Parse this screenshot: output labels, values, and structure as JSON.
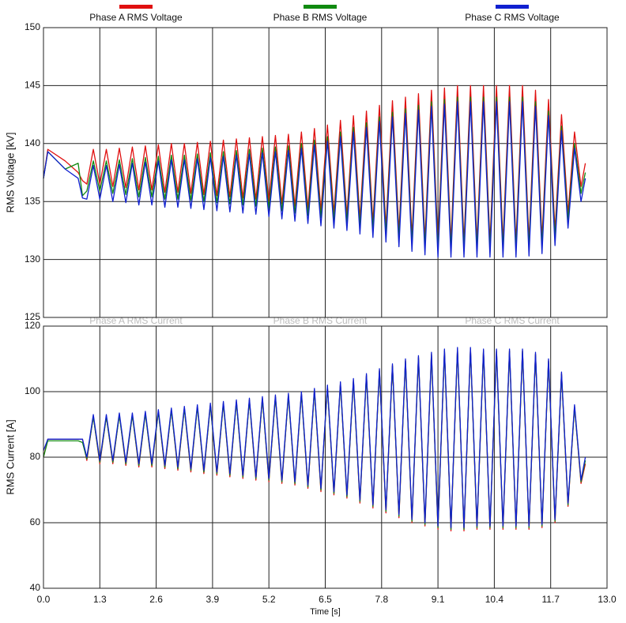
{
  "chart_data": [
    {
      "type": "line",
      "ylabel": "RMS Voltage [kV]",
      "grid": true,
      "legend": "top",
      "xlim": [
        0,
        13
      ],
      "ylim": [
        125,
        150
      ],
      "xticks": [
        0,
        1.3,
        2.6,
        3.9,
        5.2,
        6.5,
        7.8,
        9.1,
        10.4,
        11.7,
        13
      ],
      "yticks": [
        125,
        130,
        135,
        140,
        145,
        150
      ],
      "x": [
        0,
        0.1,
        0.5,
        0.8,
        0.9,
        1,
        1.15,
        1.3,
        1.45,
        1.6,
        1.75,
        1.9,
        2.05,
        2.2,
        2.35,
        2.5,
        2.65,
        2.8,
        2.95,
        3.1,
        3.25,
        3.4,
        3.55,
        3.7,
        3.85,
        4,
        4.15,
        4.3,
        4.45,
        4.6,
        4.75,
        4.9,
        5.05,
        5.2,
        5.35,
        5.5,
        5.65,
        5.8,
        5.95,
        6.1,
        6.25,
        6.4,
        6.55,
        6.7,
        6.85,
        7,
        7.15,
        7.3,
        7.45,
        7.6,
        7.75,
        7.9,
        8.05,
        8.2,
        8.35,
        8.5,
        8.65,
        8.8,
        8.95,
        9.1,
        9.25,
        9.4,
        9.55,
        9.7,
        9.85,
        10,
        10.15,
        10.3,
        10.45,
        10.6,
        10.75,
        10.9,
        11.05,
        11.2,
        11.35,
        11.5,
        11.65,
        11.8,
        11.95,
        12.1,
        12.25,
        12.4,
        12.5
      ],
      "series": [
        {
          "name": "Phase A RMS Voltage",
          "color": "#e01010",
          "values": [
            137,
            139.5,
            138.5,
            137.5,
            136.8,
            136.5,
            139.5,
            136.5,
            139.5,
            136.3,
            139.6,
            136.2,
            139.7,
            136,
            139.8,
            136,
            139.9,
            135.8,
            140,
            135.8,
            140,
            135.7,
            140.1,
            135.6,
            140.2,
            135.5,
            140.3,
            135.4,
            140.4,
            135.3,
            140.5,
            135.2,
            140.6,
            135,
            140.7,
            134.8,
            140.8,
            134.6,
            141,
            134.4,
            141.3,
            134.2,
            141.6,
            134,
            142,
            133.8,
            142.4,
            133.5,
            142.8,
            133.2,
            143.3,
            132.8,
            143.7,
            132.4,
            144,
            132,
            144.3,
            131.7,
            144.6,
            131.5,
            144.8,
            131.5,
            145,
            131.5,
            145,
            131.5,
            145,
            131.5,
            145,
            131.5,
            145,
            131.5,
            145,
            131.6,
            144.6,
            131.8,
            143.8,
            132.5,
            142.5,
            134,
            141,
            136.3,
            138.3
          ]
        },
        {
          "name": "Phase B RMS Voltage",
          "color": "#108a10",
          "values": [
            137,
            139.3,
            137.8,
            138.3,
            135.5,
            135.9,
            138.5,
            135.9,
            138.5,
            135.7,
            138.6,
            135.6,
            138.7,
            135.4,
            138.8,
            135.4,
            138.9,
            135.2,
            139,
            135.2,
            139,
            135.1,
            139.1,
            135,
            139.2,
            134.9,
            139.3,
            134.8,
            139.4,
            134.7,
            139.5,
            134.6,
            139.6,
            134.4,
            139.7,
            134.2,
            139.8,
            134,
            140,
            133.8,
            140.3,
            133.6,
            140.6,
            133.4,
            141,
            133.2,
            141.4,
            132.9,
            141.8,
            132.6,
            142.3,
            132.2,
            142.7,
            131.8,
            143,
            131.4,
            143.3,
            131.1,
            143.6,
            130.9,
            143.8,
            130.9,
            144,
            130.9,
            144,
            130.9,
            144,
            130.9,
            144,
            130.9,
            144,
            130.9,
            144,
            131,
            143.6,
            131.2,
            142.8,
            131.9,
            141.5,
            133.4,
            140,
            135.7,
            137.5
          ]
        },
        {
          "name": "Phase C RMS Voltage",
          "color": "#1020d0",
          "values": [
            137,
            139.3,
            137.8,
            137,
            135.3,
            135.2,
            138.1,
            135.2,
            138.1,
            135,
            138.2,
            134.9,
            138.3,
            134.7,
            138.4,
            134.7,
            138.5,
            134.5,
            138.6,
            134.5,
            138.6,
            134.4,
            138.7,
            134.3,
            138.8,
            134.2,
            138.9,
            134.1,
            139,
            134,
            139.1,
            133.9,
            139.2,
            133.7,
            139.3,
            133.5,
            139.4,
            133.3,
            139.6,
            133.1,
            139.9,
            132.9,
            140.2,
            132.7,
            140.6,
            132.5,
            141,
            132.2,
            141.4,
            131.9,
            141.9,
            131.5,
            142.3,
            131.1,
            142.6,
            130.7,
            142.9,
            130.4,
            143.2,
            130.2,
            143.4,
            130.2,
            143.6,
            130.2,
            143.6,
            130.2,
            143.6,
            130.2,
            143.6,
            130.2,
            143.6,
            130.2,
            143.6,
            130.3,
            143.2,
            130.5,
            142.4,
            131.2,
            141.1,
            132.7,
            139.6,
            135,
            137
          ]
        }
      ]
    },
    {
      "type": "line",
      "ylabel": "RMS Current [A]",
      "xlabel": "Time [s]",
      "grid": true,
      "legend": "top",
      "xlim": [
        0,
        13
      ],
      "ylim": [
        40,
        120
      ],
      "xticks": [
        {
          "value": 0,
          "label": "0.0"
        },
        1.3,
        2.6,
        3.9,
        5.2,
        6.5,
        7.8,
        9.1,
        10.4,
        11.7,
        {
          "value": 13,
          "label": "13.0"
        }
      ],
      "yticks": [
        40,
        60,
        80,
        100,
        120
      ],
      "x": [
        0,
        0.1,
        0.5,
        0.8,
        0.9,
        1,
        1.15,
        1.3,
        1.45,
        1.6,
        1.75,
        1.9,
        2.05,
        2.2,
        2.35,
        2.5,
        2.65,
        2.8,
        2.95,
        3.1,
        3.25,
        3.4,
        3.55,
        3.7,
        3.85,
        4,
        4.15,
        4.3,
        4.45,
        4.6,
        4.75,
        4.9,
        5.05,
        5.2,
        5.35,
        5.5,
        5.65,
        5.8,
        5.95,
        6.1,
        6.25,
        6.4,
        6.55,
        6.7,
        6.85,
        7,
        7.15,
        7.3,
        7.45,
        7.6,
        7.75,
        7.9,
        8.05,
        8.2,
        8.35,
        8.5,
        8.65,
        8.8,
        8.95,
        9.1,
        9.25,
        9.4,
        9.55,
        9.7,
        9.85,
        10,
        10.15,
        10.3,
        10.45,
        10.6,
        10.75,
        10.9,
        11.05,
        11.2,
        11.35,
        11.5,
        11.65,
        11.8,
        11.95,
        12.1,
        12.25,
        12.4,
        12.5
      ],
      "series": [
        {
          "name": "Phase A RMS Current",
          "color": "#e01010",
          "values": [
            80,
            85.5,
            85.5,
            85.5,
            85.5,
            79,
            92.5,
            78,
            92.5,
            78,
            93,
            77.5,
            93,
            77,
            93.5,
            77,
            94,
            76.5,
            94.5,
            76,
            95,
            75.5,
            95.5,
            75,
            96,
            74.5,
            96.5,
            74,
            97,
            73.5,
            97.5,
            73,
            98,
            72.5,
            98.5,
            72,
            99,
            71.5,
            99.5,
            70.5,
            100.5,
            69.5,
            101.5,
            68.5,
            102.5,
            67.5,
            103.5,
            66,
            105,
            64.5,
            106.5,
            63,
            108,
            61.5,
            109.5,
            60,
            110.5,
            59,
            111.5,
            58,
            112.5,
            57.5,
            113,
            57.5,
            113,
            58,
            112.5,
            58,
            112.5,
            58,
            112.5,
            58,
            112.5,
            58,
            111.5,
            58.5,
            109.5,
            60,
            105.5,
            65,
            95.5,
            72,
            78
          ]
        },
        {
          "name": "Phase B RMS Current",
          "color": "#108a10",
          "values": [
            80,
            85,
            85,
            85,
            84.5,
            79.5,
            92.3,
            78.5,
            92.3,
            78.5,
            92.8,
            78,
            92.8,
            77.5,
            93.3,
            77.5,
            93.8,
            77,
            94.3,
            76.5,
            94.8,
            76,
            95.3,
            75.5,
            95.8,
            75,
            96.3,
            74.5,
            96.8,
            74,
            97.3,
            73.5,
            97.8,
            73,
            98.3,
            72.5,
            98.8,
            72,
            99.3,
            71,
            100.3,
            70,
            101.3,
            69,
            102.3,
            68,
            103.3,
            66.5,
            104.8,
            65,
            106.3,
            63.5,
            107.8,
            62,
            109.3,
            60.5,
            110.3,
            59.5,
            111.3,
            58.5,
            112.3,
            58,
            112.8,
            58,
            112.8,
            58.5,
            112.3,
            58.5,
            112.3,
            58.5,
            112.3,
            58.5,
            112.3,
            58.5,
            111.3,
            59,
            109.3,
            60.5,
            105.3,
            65.5,
            95.3,
            72.5,
            79
          ]
        },
        {
          "name": "Phase C RMS Current",
          "color": "#1020d0",
          "values": [
            82,
            85.5,
            85.5,
            85.5,
            85.5,
            80,
            93,
            79,
            93,
            79,
            93.5,
            78.5,
            93.5,
            78,
            94,
            78,
            94.5,
            77.5,
            95,
            77,
            95.5,
            76.5,
            96,
            76,
            96.5,
            75.5,
            97,
            75,
            97.5,
            74.5,
            98,
            74,
            98.5,
            73.5,
            99,
            73,
            99.5,
            72.5,
            100,
            71.5,
            101,
            70.5,
            102,
            69.5,
            103,
            68.5,
            104,
            67,
            105.5,
            65.5,
            107,
            64,
            108.5,
            62.5,
            110,
            61,
            111,
            60,
            112,
            59,
            113,
            58.5,
            113.5,
            58.5,
            113.5,
            59,
            113,
            59,
            113,
            59,
            113,
            59,
            113,
            59,
            112,
            59.5,
            110,
            61,
            106,
            66,
            96,
            73,
            80
          ]
        }
      ]
    }
  ]
}
